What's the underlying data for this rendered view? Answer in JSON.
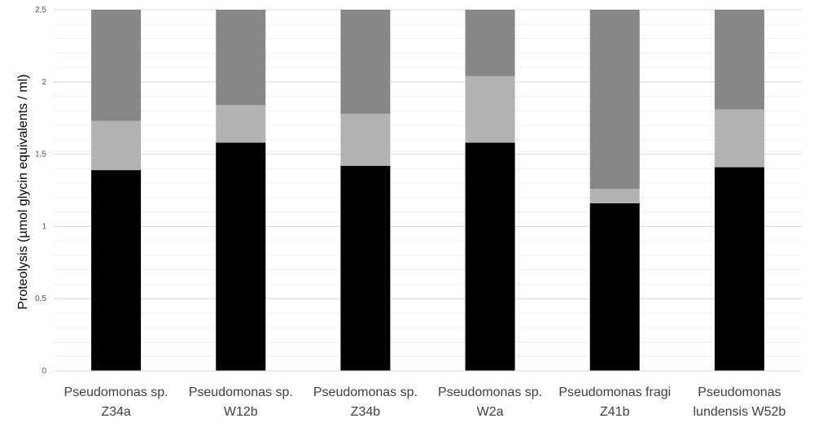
{
  "chart_data": {
    "type": "bar",
    "stacked": true,
    "title": "",
    "xlabel": "",
    "ylabel": "Proteolysis (µmol glycin equivalents / ml)",
    "ylim": [
      0,
      2.5
    ],
    "ytick_labels": [
      "0",
      "0,5",
      "1",
      "1,5",
      "2",
      "2,5"
    ],
    "yticks": [
      0,
      0.5,
      1,
      1.5,
      2,
      2.5
    ],
    "minor_grid_step": 0.1,
    "grid": true,
    "legend": "none",
    "categories": [
      [
        "Pseudomonas sp.",
        "Z34a"
      ],
      [
        "Pseudomonas sp.",
        "W12b"
      ],
      [
        "Pseudomonas sp.",
        "Z34b"
      ],
      [
        "Pseudomonas sp.",
        "W2a"
      ],
      [
        "Pseudomonas fragi",
        "Z41b"
      ],
      [
        "Pseudomonas",
        "lundensis W52b"
      ]
    ],
    "series": [
      {
        "values": [
          1.39,
          1.58,
          1.42,
          1.58,
          1.16,
          1.41
        ],
        "color": "#000000"
      },
      {
        "values": [
          0.34,
          0.26,
          0.36,
          0.46,
          0.1,
          0.4
        ],
        "color": "#b2b2b2"
      },
      {
        "values": [
          0.77,
          0.66,
          0.72,
          0.46,
          1.24,
          0.69
        ],
        "color": "#878787"
      }
    ]
  }
}
